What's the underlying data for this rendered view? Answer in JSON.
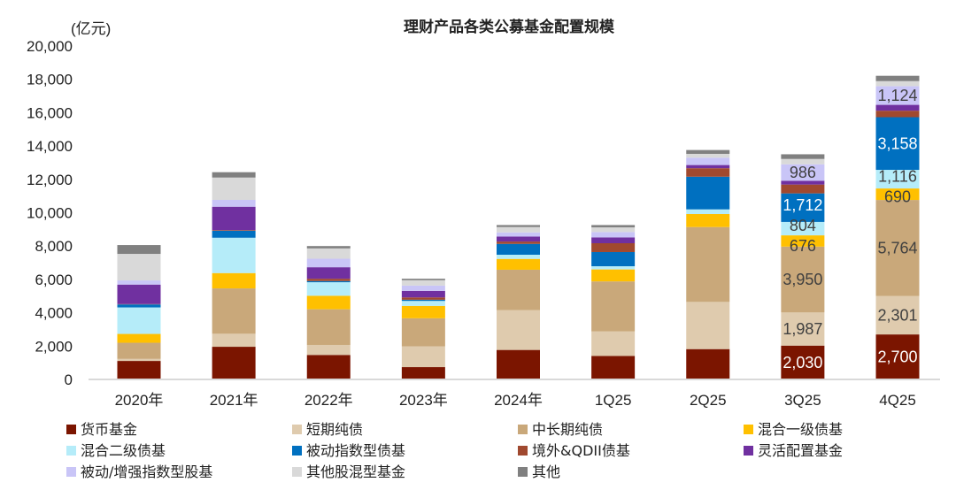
{
  "chart_data": {
    "type": "stacked-bar",
    "title": "理财产品各类公募基金配置规模",
    "ylabel": "(亿元)",
    "ylim": [
      0,
      20000
    ],
    "yticks": [
      "0",
      "2,000",
      "4,000",
      "6,000",
      "8,000",
      "10,000",
      "12,000",
      "14,000",
      "16,000",
      "18,000",
      "20,000"
    ],
    "ytick_values": [
      0,
      2000,
      4000,
      6000,
      8000,
      10000,
      12000,
      14000,
      16000,
      18000,
      20000
    ],
    "grid": false,
    "legend_position": "bottom",
    "categories": [
      "2020年",
      "2021年",
      "2022年",
      "2023年",
      "2024年",
      "1Q25",
      "2Q25",
      "3Q25",
      "4Q25"
    ],
    "series": [
      {
        "name": "货币基金",
        "color": "#7B1500",
        "values": [
          1110,
          1960,
          1470,
          740,
          1770,
          1410,
          1820,
          2030,
          2700
        ],
        "labels": [
          null,
          null,
          null,
          null,
          null,
          null,
          null,
          "2,030",
          "2,700"
        ],
        "label_color": "#ffffff"
      },
      {
        "name": "短期纯债",
        "color": "#DFCBAE",
        "values": [
          120,
          780,
          600,
          1250,
          2390,
          1470,
          2830,
          1987,
          2301
        ],
        "labels": [
          null,
          null,
          null,
          null,
          null,
          null,
          null,
          "1,987",
          "2,301"
        ],
        "label_color": "#404040"
      },
      {
        "name": "中长期纯债",
        "color": "#C9A87A",
        "values": [
          970,
          2720,
          2140,
          1680,
          2420,
          3000,
          4490,
          3950,
          5764
        ],
        "labels": [
          null,
          null,
          null,
          null,
          null,
          null,
          null,
          "3,950",
          "5,764"
        ],
        "label_color": "#404040"
      },
      {
        "name": "混合一级债基",
        "color": "#FFC000",
        "values": [
          530,
          920,
          810,
          740,
          650,
          720,
          780,
          676,
          690
        ],
        "labels": [
          null,
          null,
          null,
          null,
          null,
          null,
          null,
          "676",
          "690"
        ],
        "label_color": "#404040"
      },
      {
        "name": "混合二级债基",
        "color": "#B5ECF9",
        "values": [
          1590,
          2120,
          810,
          300,
          250,
          190,
          280,
          804,
          1116
        ],
        "labels": [
          null,
          null,
          null,
          null,
          null,
          null,
          null,
          "804",
          "1,116"
        ],
        "label_color": "#404040"
      },
      {
        "name": "被动指数型债基",
        "color": "#0070C0",
        "values": [
          180,
          420,
          70,
          70,
          650,
          850,
          1960,
          1712,
          3158
        ],
        "labels": [
          null,
          null,
          null,
          null,
          null,
          null,
          null,
          "1,712",
          "3,158"
        ],
        "label_color": "#ffffff"
      },
      {
        "name": "境外&QDII债基",
        "color": "#A0492F",
        "values": [
          20,
          40,
          140,
          140,
          140,
          530,
          510,
          530,
          390
        ],
        "labels": [],
        "label_color": "#404040"
      },
      {
        "name": "灵活配置基金",
        "color": "#7030A0",
        "values": [
          1170,
          1400,
          690,
          390,
          300,
          350,
          190,
          230,
          350
        ],
        "labels": [],
        "label_color": "#404040"
      },
      {
        "name": "被动/增强指数型股基",
        "color": "#C9C5F7",
        "values": [
          250,
          410,
          510,
          320,
          250,
          320,
          440,
          986,
          1124
        ],
        "labels": [
          null,
          null,
          null,
          null,
          null,
          null,
          null,
          "986",
          "1,124"
        ],
        "label_color": "#404040"
      },
      {
        "name": "其他股混型基金",
        "color": "#D9D9D9",
        "values": [
          1590,
          1340,
          620,
          320,
          320,
          280,
          230,
          320,
          300
        ],
        "labels": [],
        "label_color": "#404040"
      },
      {
        "name": "其他",
        "color": "#808080",
        "values": [
          530,
          320,
          140,
          90,
          120,
          140,
          230,
          280,
          320
        ],
        "labels": [],
        "label_color": "#404040"
      }
    ]
  }
}
